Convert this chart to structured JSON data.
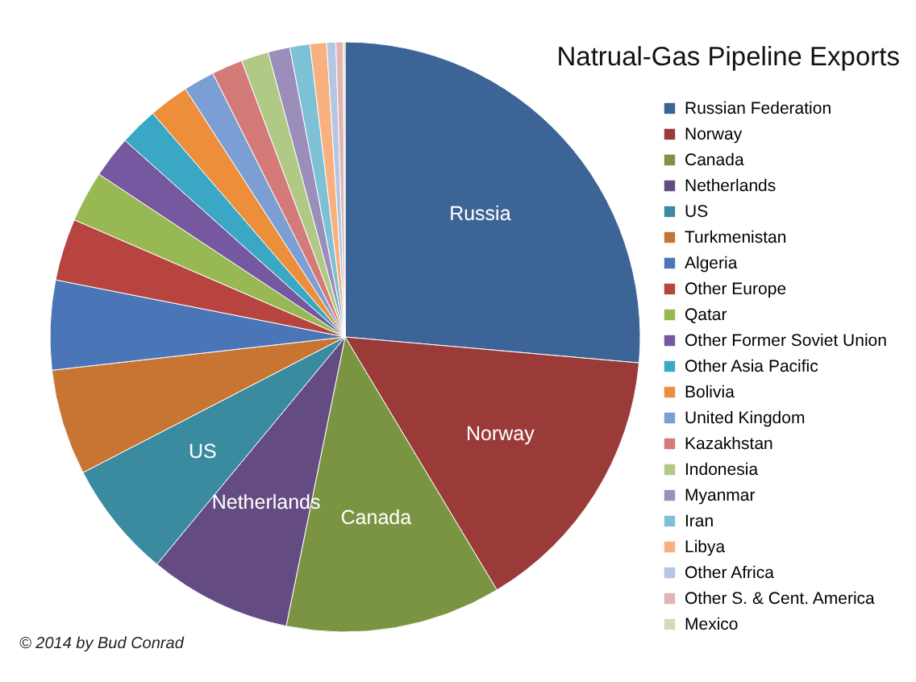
{
  "chart_data": {
    "type": "pie",
    "title": "Natrual-Gas Pipeline Exports",
    "categories": [
      "Russian Federation",
      "Norway",
      "Canada",
      "Netherlands",
      "US",
      "Turkmenistan",
      "Algeria",
      "Other Europe",
      "Qatar",
      "Other Former Soviet Union",
      "Other Asia Pacific",
      "Bolivia",
      "United Kingdom",
      "Kazakhstan",
      "Indonesia",
      "Myanmar",
      "Iran",
      "Libya",
      "Other Africa",
      "Other S. & Cent. America",
      "Mexico"
    ],
    "values": [
      26.4,
      15,
      11.8,
      7.8,
      6.4,
      5.8,
      4.9,
      3.4,
      2.8,
      2.3,
      2.1,
      2.2,
      1.7,
      1.7,
      1.5,
      1.2,
      1.1,
      0.9,
      0.5,
      0.4,
      0.1
    ],
    "colors": [
      "#3d6496",
      "#9a3b3a",
      "#7a9442",
      "#644c82",
      "#3a8aa0",
      "#c87533",
      "#4a76b8",
      "#b84440",
      "#97b853",
      "#7558a0",
      "#3aa8c4",
      "#ec8e3a",
      "#7b9fd4",
      "#d47b7a",
      "#b0ca85",
      "#9c8ebb",
      "#7ec0d4",
      "#f8b07e",
      "#b4c6e2",
      "#e2b4b4",
      "#cfdcb4"
    ],
    "value_labels": [
      "Russia",
      "Norway",
      "Canada",
      "Netherlands",
      "US",
      null,
      null,
      null,
      null,
      null,
      null,
      null,
      null,
      null,
      null,
      null,
      null,
      null,
      null,
      null,
      null
    ],
    "legend": "right",
    "annotations": [
      "© 2014 by Bud Conrad"
    ]
  }
}
